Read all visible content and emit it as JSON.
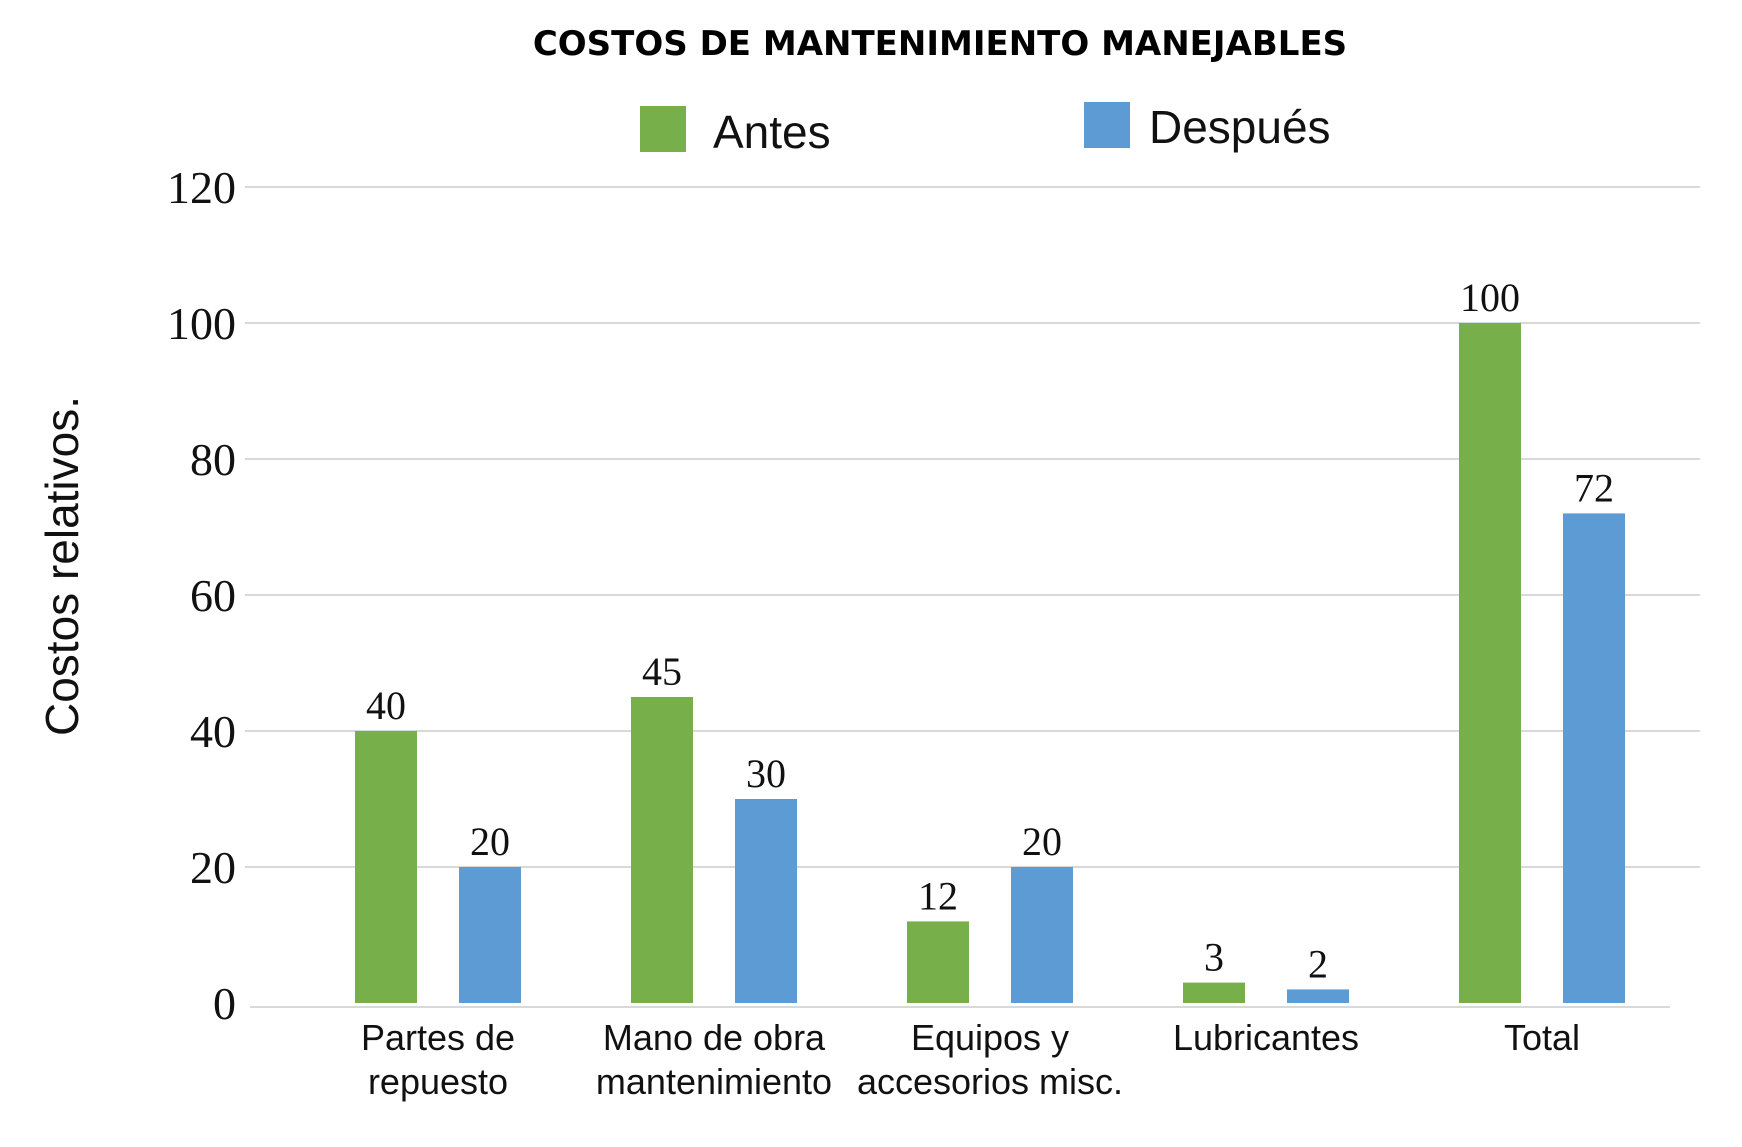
{
  "chart_data": {
    "type": "bar",
    "title": "COSTOS DE MANTENIMIENTO MANEJABLES",
    "ylabel": "Costos relativos.",
    "xlabel": "",
    "ylim": [
      0,
      120
    ],
    "yticks": [
      0,
      20,
      40,
      60,
      80,
      100,
      120
    ],
    "grid": true,
    "legend_position": "top-center",
    "categories": [
      [
        "Partes de",
        "repuesto"
      ],
      [
        "Mano de obra",
        "mantenimiento"
      ],
      [
        "Equipos y",
        "accesorios misc."
      ],
      [
        "Lubricantes"
      ],
      [
        "Total"
      ]
    ],
    "series": [
      {
        "name": "Antes",
        "color": "#77b04a",
        "values": [
          40,
          45,
          12,
          3,
          100
        ]
      },
      {
        "name": "Después",
        "color": "#5d9bd5",
        "values": [
          20,
          30,
          20,
          2,
          72
        ]
      }
    ]
  }
}
